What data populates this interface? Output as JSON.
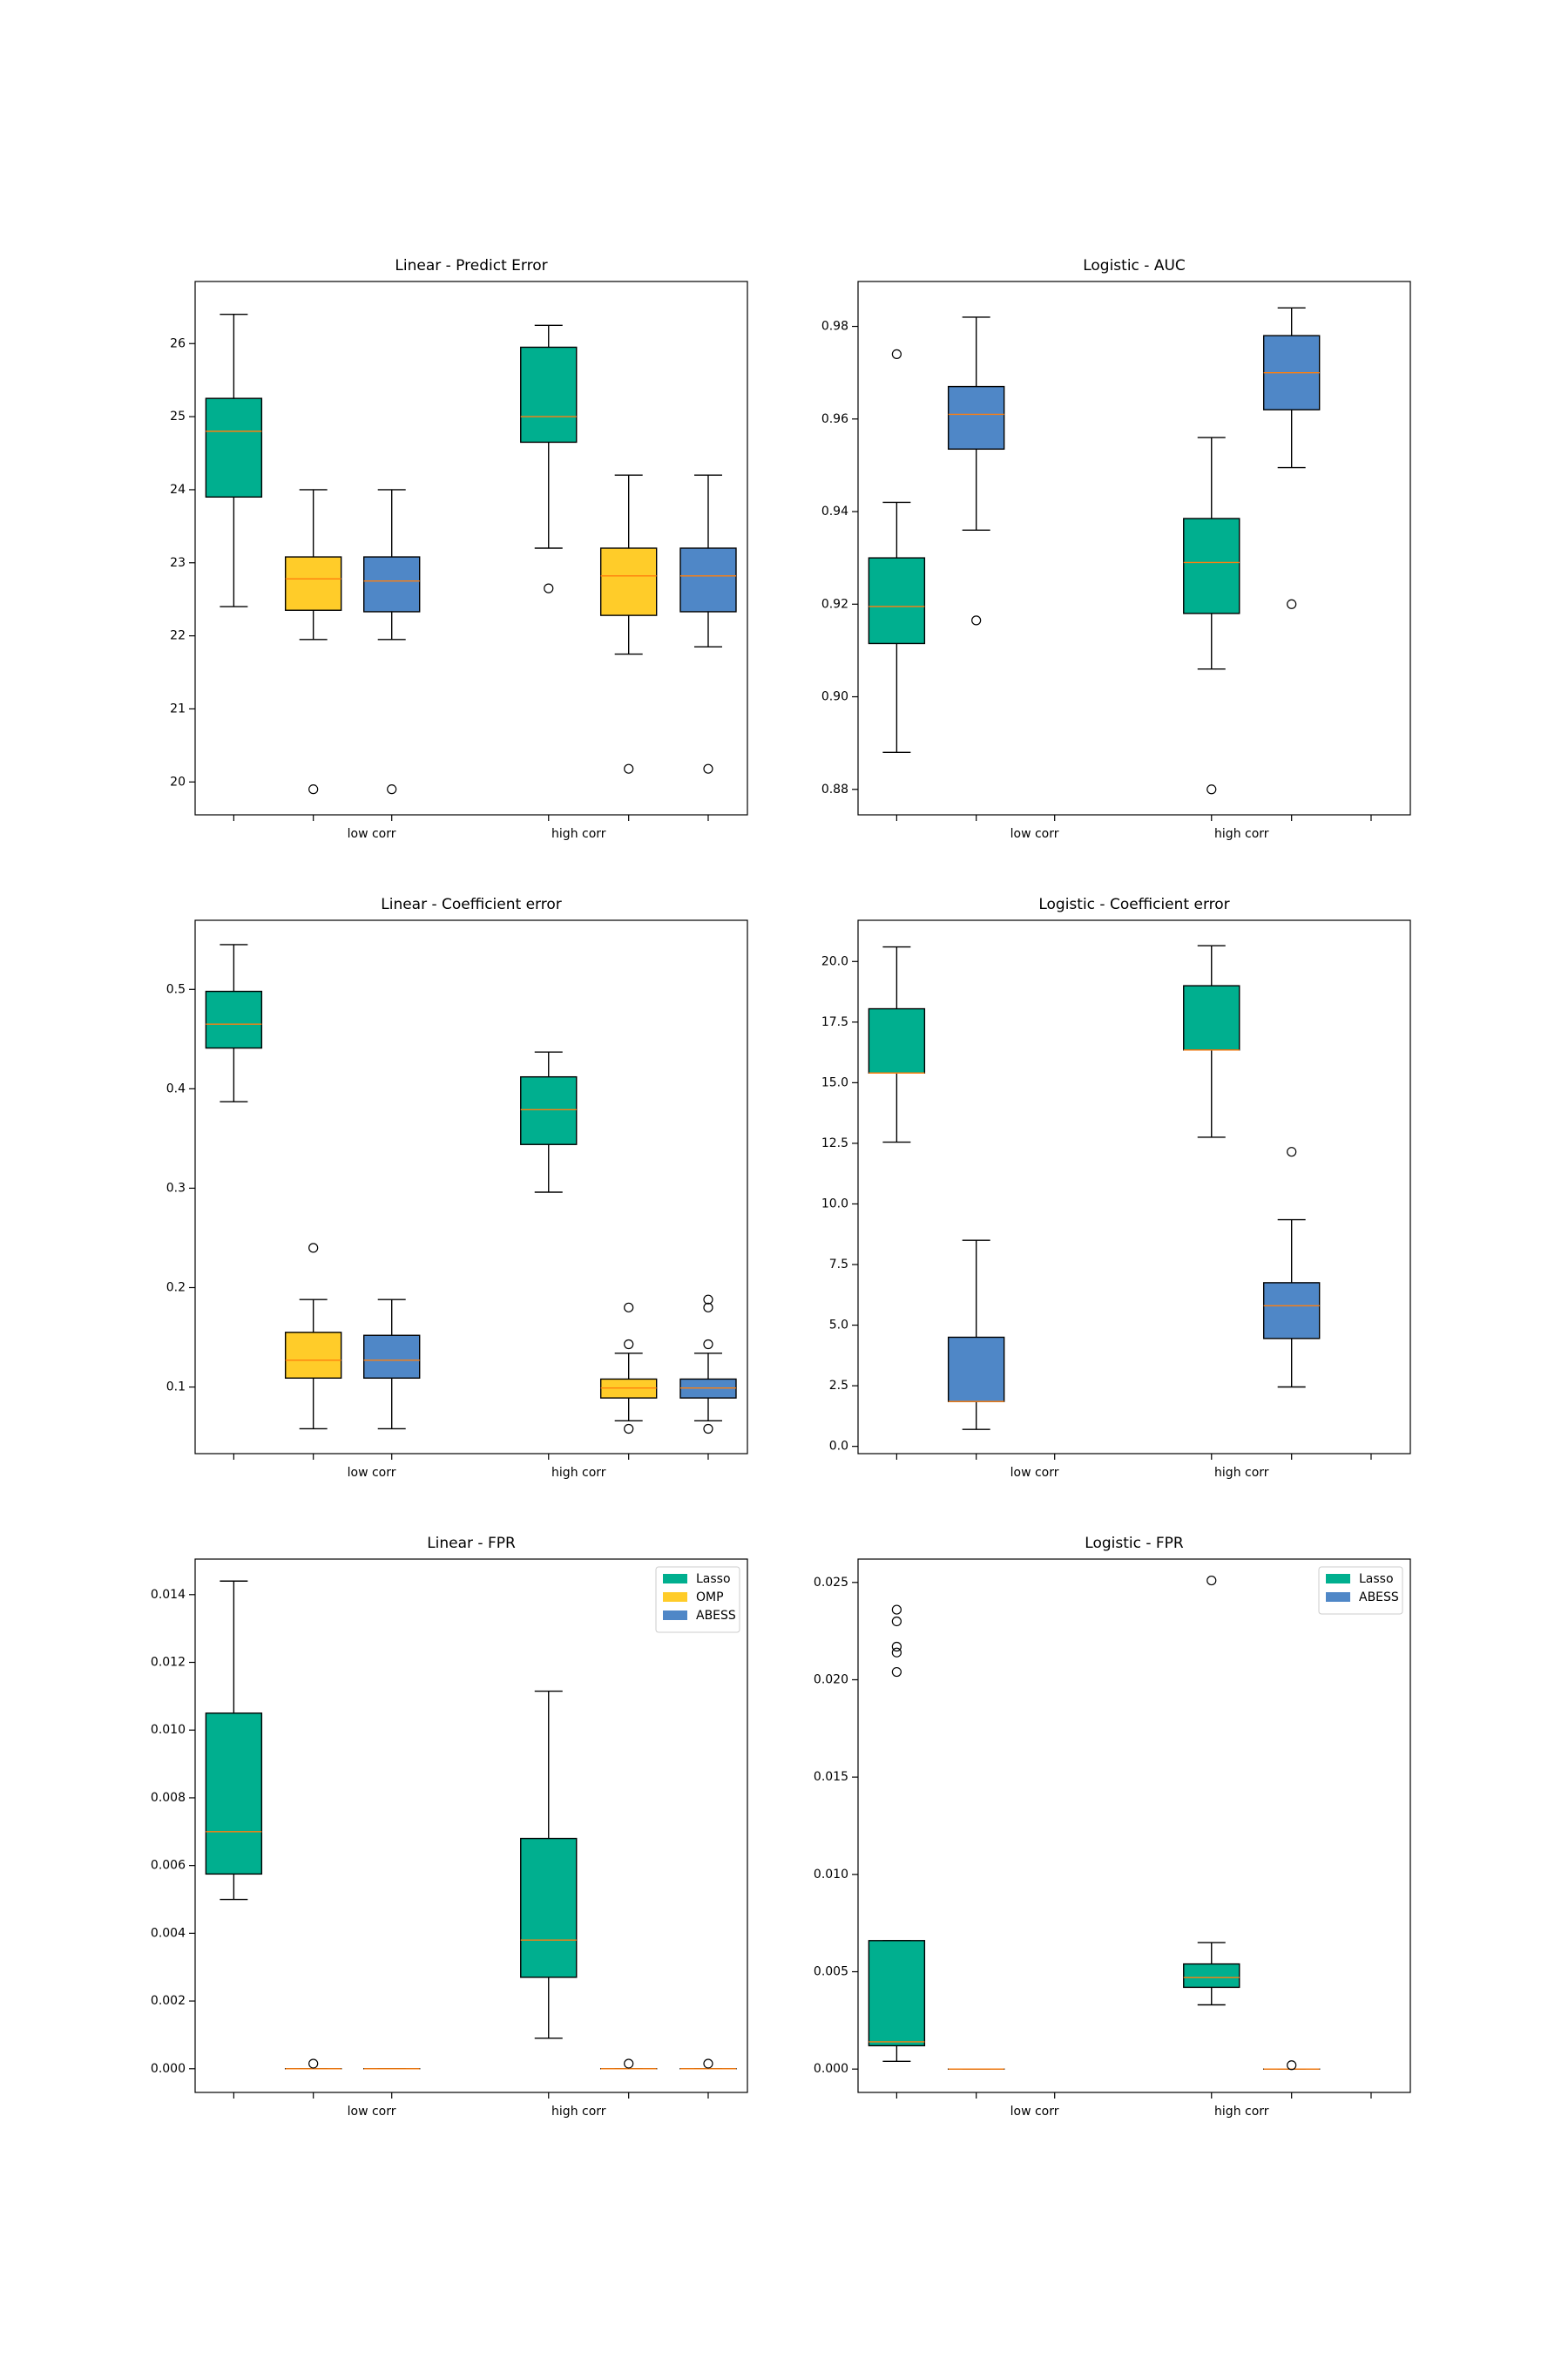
{
  "chart_data": [
    {
      "type": "box",
      "title": "Linear - Predict Error",
      "xlabel": "",
      "ylabel": "",
      "x_tick_labels": [
        "low corr",
        "high corr"
      ],
      "ylim": [
        19.55,
        26.85
      ],
      "yticks": [
        20,
        21,
        22,
        23,
        24,
        25,
        26
      ],
      "ytick_labels": [
        "20",
        "21",
        "22",
        "23",
        "24",
        "25",
        "26"
      ],
      "grid": false,
      "series": [
        {
          "name": "Lasso",
          "color": "#00af8f",
          "boxes": [
            {
              "group": "low corr",
              "whislo": 22.4,
              "q1": 23.9,
              "med": 24.8,
              "q3": 25.25,
              "whishi": 26.4,
              "fliers": []
            },
            {
              "group": "high corr",
              "whislo": 23.2,
              "q1": 24.65,
              "med": 25.0,
              "q3": 25.95,
              "whishi": 26.25,
              "fliers": [
                22.65
              ]
            }
          ]
        },
        {
          "name": "OMP",
          "color": "#ffcc29",
          "boxes": [
            {
              "group": "low corr",
              "whislo": 21.95,
              "q1": 22.35,
              "med": 22.78,
              "q3": 23.08,
              "whishi": 24.0,
              "fliers": [
                19.9
              ]
            },
            {
              "group": "high corr",
              "whislo": 21.75,
              "q1": 22.28,
              "med": 22.82,
              "q3": 23.2,
              "whishi": 24.2,
              "fliers": [
                20.18
              ]
            }
          ]
        },
        {
          "name": "ABESS",
          "color": "#4f87c7",
          "boxes": [
            {
              "group": "low corr",
              "whislo": 21.95,
              "q1": 22.33,
              "med": 22.75,
              "q3": 23.08,
              "whishi": 24.0,
              "fliers": [
                19.9
              ]
            },
            {
              "group": "high corr",
              "whislo": 21.85,
              "q1": 22.33,
              "med": 22.82,
              "q3": 23.2,
              "whishi": 24.2,
              "fliers": [
                20.18
              ]
            }
          ]
        }
      ]
    },
    {
      "type": "box",
      "title": "Logistic - AUC",
      "xlabel": "",
      "ylabel": "",
      "x_tick_labels": [
        "low corr",
        "high corr"
      ],
      "ylim": [
        0.8745,
        0.9897
      ],
      "yticks": [
        0.88,
        0.9,
        0.92,
        0.94,
        0.96,
        0.98
      ],
      "ytick_labels": [
        "0.88",
        "0.90",
        "0.92",
        "0.94",
        "0.96",
        "0.98"
      ],
      "grid": false,
      "series": [
        {
          "name": "Lasso",
          "color": "#00af8f",
          "boxes": [
            {
              "group": "low corr",
              "whislo": 0.888,
              "q1": 0.9115,
              "med": 0.9195,
              "q3": 0.93,
              "whishi": 0.942,
              "fliers": [
                0.974
              ]
            },
            {
              "group": "high corr",
              "whislo": 0.906,
              "q1": 0.918,
              "med": 0.929,
              "q3": 0.9385,
              "whishi": 0.956,
              "fliers": [
                0.88
              ]
            }
          ]
        },
        {
          "name": "ABESS",
          "color": "#4f87c7",
          "boxes": [
            {
              "group": "low corr",
              "whislo": 0.936,
              "q1": 0.9535,
              "med": 0.961,
              "q3": 0.967,
              "whishi": 0.982,
              "fliers": [
                0.9165
              ]
            },
            {
              "group": "high corr",
              "whislo": 0.9495,
              "q1": 0.962,
              "med": 0.97,
              "q3": 0.978,
              "whishi": 0.984,
              "fliers": [
                0.92
              ]
            }
          ]
        }
      ]
    },
    {
      "type": "box",
      "title": "Linear - Coefficient error",
      "xlabel": "",
      "ylabel": "",
      "x_tick_labels": [
        "low corr",
        "high corr"
      ],
      "ylim": [
        0.033,
        0.5695
      ],
      "yticks": [
        0.1,
        0.2,
        0.3,
        0.4,
        0.5
      ],
      "ytick_labels": [
        "0.1",
        "0.2",
        "0.3",
        "0.4",
        "0.5"
      ],
      "grid": false,
      "series": [
        {
          "name": "Lasso",
          "color": "#00af8f",
          "boxes": [
            {
              "group": "low corr",
              "whislo": 0.387,
              "q1": 0.441,
              "med": 0.465,
              "q3": 0.498,
              "whishi": 0.545,
              "fliers": []
            },
            {
              "group": "high corr",
              "whislo": 0.296,
              "q1": 0.344,
              "med": 0.379,
              "q3": 0.412,
              "whishi": 0.437,
              "fliers": []
            }
          ]
        },
        {
          "name": "OMP",
          "color": "#ffcc29",
          "boxes": [
            {
              "group": "low corr",
              "whislo": 0.058,
              "q1": 0.109,
              "med": 0.127,
              "q3": 0.155,
              "whishi": 0.188,
              "fliers": [
                0.24
              ]
            },
            {
              "group": "high corr",
              "whislo": 0.066,
              "q1": 0.089,
              "med": 0.099,
              "q3": 0.108,
              "whishi": 0.134,
              "fliers": [
                0.058,
                0.143,
                0.18
              ]
            }
          ]
        },
        {
          "name": "ABESS",
          "color": "#4f87c7",
          "boxes": [
            {
              "group": "low corr",
              "whislo": 0.058,
              "q1": 0.109,
              "med": 0.127,
              "q3": 0.152,
              "whishi": 0.188,
              "fliers": []
            },
            {
              "group": "high corr",
              "whislo": 0.066,
              "q1": 0.089,
              "med": 0.099,
              "q3": 0.108,
              "whishi": 0.134,
              "fliers": [
                0.058,
                0.143,
                0.18,
                0.188
              ]
            }
          ]
        }
      ]
    },
    {
      "type": "box",
      "title": "Logistic - Coefficient error",
      "xlabel": "",
      "ylabel": "",
      "x_tick_labels": [
        "low corr",
        "high corr"
      ],
      "ylim": [
        -0.3,
        21.7
      ],
      "yticks": [
        0.0,
        2.5,
        5.0,
        7.5,
        10.0,
        12.5,
        15.0,
        17.5,
        20.0
      ],
      "ytick_labels": [
        "0.0",
        "2.5",
        "5.0",
        "7.5",
        "10.0",
        "12.5",
        "15.0",
        "17.5",
        "20.0"
      ],
      "grid": false,
      "series": [
        {
          "name": "Lasso",
          "color": "#00af8f",
          "boxes": [
            {
              "group": "low corr",
              "whislo": 12.55,
              "q1": 15.4,
              "med": 15.4,
              "q3": 18.05,
              "whishi": 20.6,
              "fliers": []
            },
            {
              "group": "high corr",
              "whislo": 12.75,
              "q1": 16.35,
              "med": 16.35,
              "q3": 19.0,
              "whishi": 20.65,
              "fliers": []
            }
          ]
        },
        {
          "name": "ABESS",
          "color": "#4f87c7",
          "boxes": [
            {
              "group": "low corr",
              "whislo": 0.7,
              "q1": 1.85,
              "med": 1.85,
              "q3": 4.5,
              "whishi": 8.5,
              "fliers": []
            },
            {
              "group": "high corr",
              "whislo": 2.45,
              "q1": 4.45,
              "med": 5.8,
              "q3": 6.75,
              "whishi": 9.35,
              "fliers": [
                12.15
              ]
            }
          ]
        }
      ]
    },
    {
      "type": "box",
      "title": "Linear - FPR",
      "xlabel": "",
      "ylabel": "",
      "x_tick_labels": [
        "low corr",
        "high corr"
      ],
      "ylim": [
        -0.0007,
        0.01505
      ],
      "yticks": [
        0.0,
        0.002,
        0.004,
        0.006,
        0.008,
        0.01,
        0.012,
        0.014
      ],
      "ytick_labels": [
        "0.000",
        "0.002",
        "0.004",
        "0.006",
        "0.008",
        "0.010",
        "0.012",
        "0.014"
      ],
      "grid": false,
      "legend": {
        "position": "upper right",
        "entries": [
          "Lasso",
          "OMP",
          "ABESS"
        ]
      },
      "series": [
        {
          "name": "Lasso",
          "color": "#00af8f",
          "boxes": [
            {
              "group": "low corr",
              "whislo": 0.005,
              "q1": 0.00575,
              "med": 0.007,
              "q3": 0.0105,
              "whishi": 0.0144,
              "fliers": []
            },
            {
              "group": "high corr",
              "whislo": 0.0009,
              "q1": 0.0027,
              "med": 0.0038,
              "q3": 0.0068,
              "whishi": 0.01115,
              "fliers": []
            }
          ]
        },
        {
          "name": "OMP",
          "color": "#ffcc29",
          "boxes": [
            {
              "group": "low corr",
              "whislo": 0.0,
              "q1": 0.0,
              "med": 0.0,
              "q3": 0.0,
              "whishi": 0.0,
              "fliers": [
                0.00015
              ]
            },
            {
              "group": "high corr",
              "whislo": 0.0,
              "q1": 0.0,
              "med": 0.0,
              "q3": 0.0,
              "whishi": 0.0,
              "fliers": [
                0.00015
              ]
            }
          ]
        },
        {
          "name": "ABESS",
          "color": "#4f87c7",
          "boxes": [
            {
              "group": "low corr",
              "whislo": 0.0,
              "q1": 0.0,
              "med": 0.0,
              "q3": 0.0,
              "whishi": 0.0,
              "fliers": []
            },
            {
              "group": "high corr",
              "whislo": 0.0,
              "q1": 0.0,
              "med": 0.0,
              "q3": 0.0,
              "whishi": 0.0,
              "fliers": [
                0.00015
              ]
            }
          ]
        }
      ]
    },
    {
      "type": "box",
      "title": "Logistic - FPR",
      "xlabel": "",
      "ylabel": "",
      "x_tick_labels": [
        "low corr",
        "high corr"
      ],
      "ylim": [
        -0.0012,
        0.0262
      ],
      "yticks": [
        0.0,
        0.005,
        0.01,
        0.015,
        0.02,
        0.025
      ],
      "ytick_labels": [
        "0.000",
        "0.005",
        "0.010",
        "0.015",
        "0.020",
        "0.025"
      ],
      "grid": false,
      "legend": {
        "position": "upper right",
        "entries": [
          "Lasso",
          "ABESS"
        ]
      },
      "series": [
        {
          "name": "Lasso",
          "color": "#00af8f",
          "boxes": [
            {
              "group": "low corr",
              "whislo": 0.0004,
              "q1": 0.0012,
              "med": 0.0014,
              "q3": 0.0066,
              "whishi": 0.0066,
              "fliers": [
                0.0204,
                0.0214,
                0.0217,
                0.023,
                0.0236
              ]
            },
            {
              "group": "high corr",
              "whislo": 0.0033,
              "q1": 0.0042,
              "med": 0.0047,
              "q3": 0.0054,
              "whishi": 0.0065,
              "fliers": [
                0.0251
              ]
            }
          ]
        },
        {
          "name": "ABESS",
          "color": "#4f87c7",
          "boxes": [
            {
              "group": "low corr",
              "whislo": 0.0,
              "q1": 0.0,
              "med": 0.0,
              "q3": 0.0,
              "whishi": 0.0,
              "fliers": []
            },
            {
              "group": "high corr",
              "whislo": 0.0,
              "q1": 0.0,
              "med": 0.0,
              "q3": 0.0,
              "whishi": 0.0,
              "fliers": [
                0.0002
              ]
            }
          ]
        }
      ]
    }
  ]
}
